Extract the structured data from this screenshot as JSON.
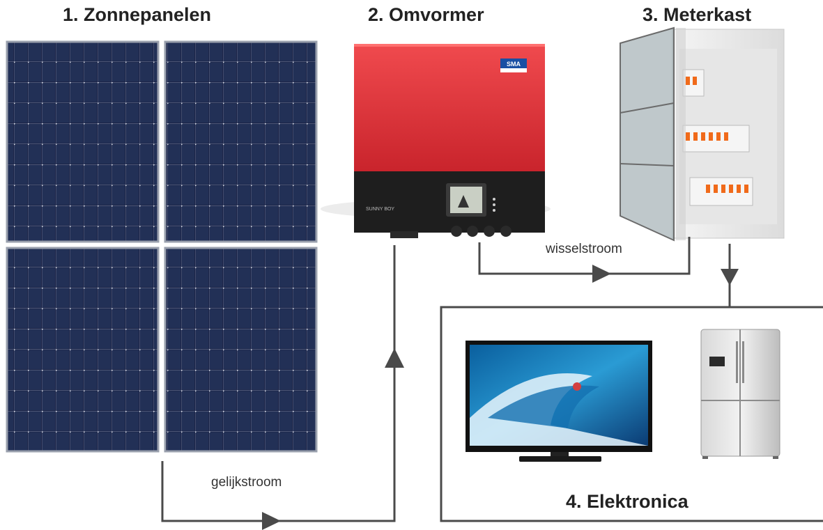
{
  "steps": [
    {
      "label": "1. Zonnepanelen"
    },
    {
      "label": "2. Omvormer"
    },
    {
      "label": "3. Meterkast"
    },
    {
      "label": "4. Elektronica"
    }
  ],
  "flows": {
    "dc": "gelijkstroom",
    "ac": "wisselstroom"
  },
  "inverter": {
    "brand": "SMA",
    "model": "SUNNY BOY"
  },
  "colors": {
    "panel": "#1b2447",
    "inverter": "#e0303a",
    "inverter_base": "#1e1e1e",
    "line": "#4a4a4a"
  }
}
